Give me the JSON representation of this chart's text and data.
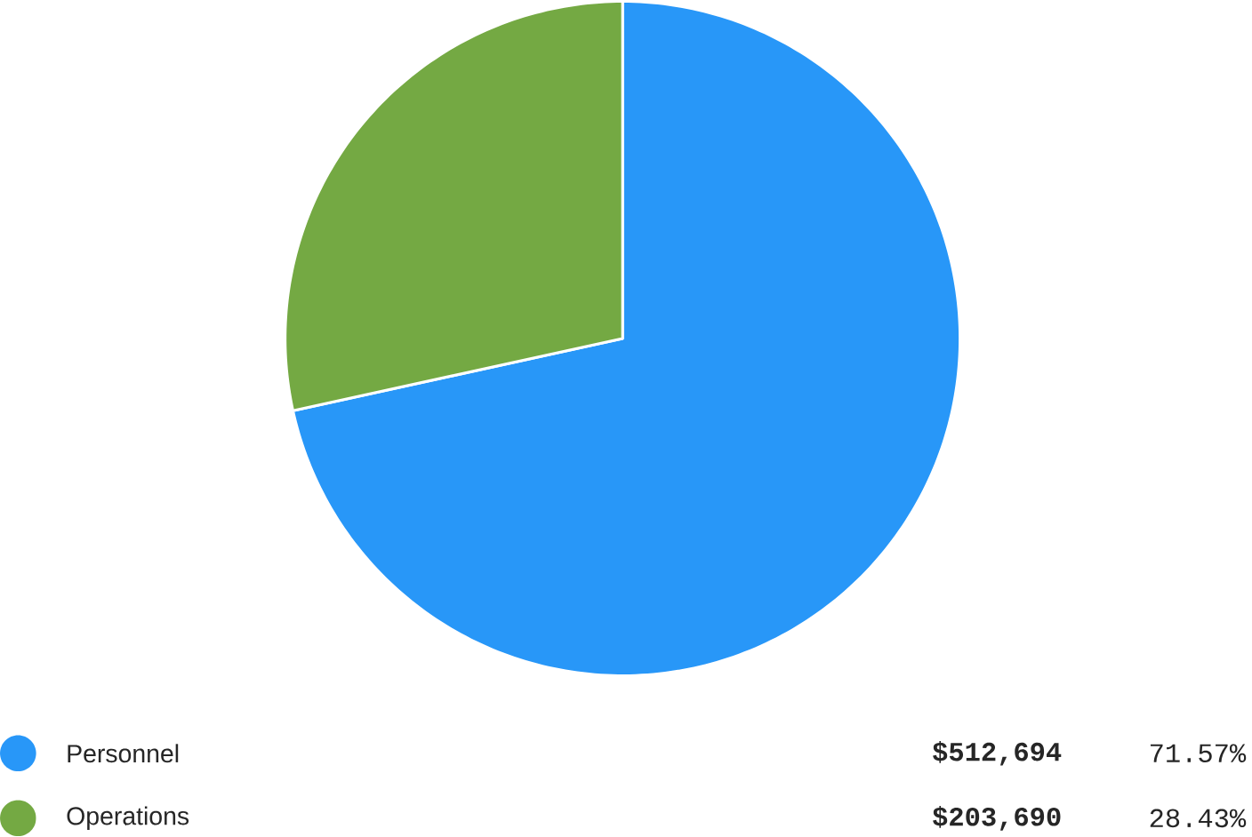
{
  "chart_data": {
    "type": "pie",
    "categories": [
      "Personnel",
      "Operations"
    ],
    "values": [
      512694,
      203690
    ],
    "colors": [
      "#2897f8",
      "#74a943"
    ],
    "value_labels": [
      "$512,694",
      "$203,690"
    ],
    "annotations": [
      "71.57%",
      "28.43%"
    ],
    "legend": "bottom"
  }
}
